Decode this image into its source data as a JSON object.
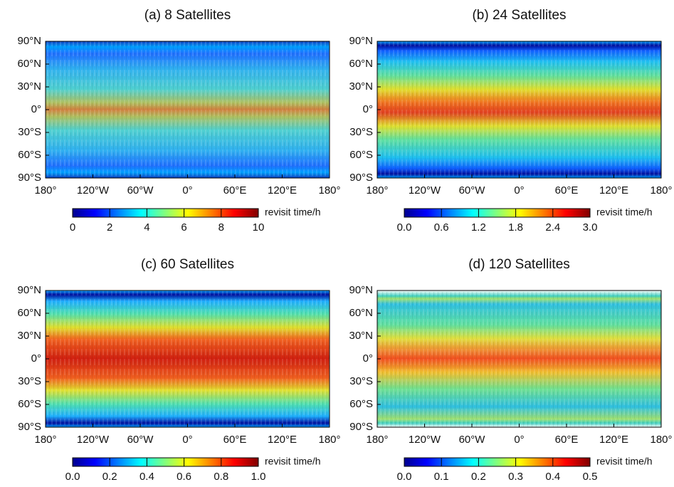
{
  "chart_data": [
    {
      "type": "heatmap",
      "title": "(a)  8 Satellites",
      "colormap": "jet",
      "xlim": [
        -180,
        180
      ],
      "ylim": [
        -90,
        90
      ],
      "xticks": [
        {
          "value": -180,
          "label": "180°"
        },
        {
          "value": -120,
          "label": "120°W"
        },
        {
          "value": -60,
          "label": "60°W"
        },
        {
          "value": 0,
          "label": "0°"
        },
        {
          "value": 60,
          "label": "60°E"
        },
        {
          "value": 120,
          "label": "120°E"
        },
        {
          "value": 180,
          "label": "180°"
        }
      ],
      "yticks": [
        {
          "value": 90,
          "label": "90°N"
        },
        {
          "value": 60,
          "label": "60°N"
        },
        {
          "value": 30,
          "label": "30°N"
        },
        {
          "value": 0,
          "label": "0°"
        },
        {
          "value": -30,
          "label": "30°S"
        },
        {
          "value": -60,
          "label": "60°S"
        },
        {
          "value": -90,
          "label": "90°S"
        }
      ],
      "colorbar_label": "revisit time/h",
      "clim": [
        0,
        10
      ],
      "cticks": [
        0,
        2,
        4,
        6,
        8,
        10
      ]
    },
    {
      "type": "heatmap",
      "title": "(b)  24 Satellites",
      "colormap": "jet",
      "xlim": [
        -180,
        180
      ],
      "ylim": [
        -90,
        90
      ],
      "xticks": [
        {
          "value": -180,
          "label": "180°"
        },
        {
          "value": -120,
          "label": "120°W"
        },
        {
          "value": -60,
          "label": "60°W"
        },
        {
          "value": 0,
          "label": "0°"
        },
        {
          "value": 60,
          "label": "60°E"
        },
        {
          "value": 120,
          "label": "120°E"
        },
        {
          "value": 180,
          "label": "180°"
        }
      ],
      "yticks": [
        {
          "value": 90,
          "label": "90°N"
        },
        {
          "value": 60,
          "label": "60°N"
        },
        {
          "value": 30,
          "label": "30°N"
        },
        {
          "value": 0,
          "label": "0°"
        },
        {
          "value": -30,
          "label": "30°S"
        },
        {
          "value": -60,
          "label": "60°S"
        },
        {
          "value": -90,
          "label": "90°S"
        }
      ],
      "colorbar_label": "revisit time/h",
      "clim": [
        0,
        3
      ],
      "cticks": [
        {
          "value": 0,
          "label": "0.0"
        },
        0.6,
        1.2,
        1.8,
        2.4,
        {
          "value": 3,
          "label": "3.0"
        }
      ]
    },
    {
      "type": "heatmap",
      "title": "(c)  60 Satellites",
      "colormap": "jet",
      "xlim": [
        -180,
        180
      ],
      "ylim": [
        -90,
        90
      ],
      "xticks": [
        {
          "value": -180,
          "label": "180°"
        },
        {
          "value": -120,
          "label": "120°W"
        },
        {
          "value": -60,
          "label": "60°W"
        },
        {
          "value": 0,
          "label": "0°"
        },
        {
          "value": 60,
          "label": "60°E"
        },
        {
          "value": 120,
          "label": "120°E"
        },
        {
          "value": 180,
          "label": "180°"
        }
      ],
      "yticks": [
        {
          "value": 90,
          "label": "90°N"
        },
        {
          "value": 60,
          "label": "60°N"
        },
        {
          "value": 30,
          "label": "30°N"
        },
        {
          "value": 0,
          "label": "0°"
        },
        {
          "value": -30,
          "label": "30°S"
        },
        {
          "value": -60,
          "label": "60°S"
        },
        {
          "value": -90,
          "label": "90°S"
        }
      ],
      "colorbar_label": "revisit time/h",
      "clim": [
        0,
        1
      ],
      "cticks": [
        {
          "value": 0,
          "label": "0.0"
        },
        0.2,
        0.4,
        0.6,
        0.8,
        {
          "value": 1,
          "label": "1.0"
        }
      ]
    },
    {
      "type": "heatmap",
      "title": "(d)  120 Satellites",
      "colormap": "jet",
      "xlim": [
        -180,
        180
      ],
      "ylim": [
        -90,
        90
      ],
      "xticks": [
        {
          "value": -180,
          "label": "180°"
        },
        {
          "value": -120,
          "label": "120°W"
        },
        {
          "value": -60,
          "label": "60°W"
        },
        {
          "value": 0,
          "label": "0°"
        },
        {
          "value": 60,
          "label": "60°E"
        },
        {
          "value": 120,
          "label": "120°E"
        },
        {
          "value": 180,
          "label": "180°"
        }
      ],
      "yticks": [
        {
          "value": 90,
          "label": "90°N"
        },
        {
          "value": 60,
          "label": "60°N"
        },
        {
          "value": 30,
          "label": "30°N"
        },
        {
          "value": 0,
          "label": "0°"
        },
        {
          "value": -30,
          "label": "30°S"
        },
        {
          "value": -60,
          "label": "60°S"
        },
        {
          "value": -90,
          "label": "90°S"
        }
      ],
      "colorbar_label": "revisit time/h",
      "clim": [
        0,
        0.5
      ],
      "cticks": [
        {
          "value": 0,
          "label": "0.0"
        },
        0.1,
        0.2,
        0.3,
        0.4,
        0.5
      ]
    }
  ]
}
